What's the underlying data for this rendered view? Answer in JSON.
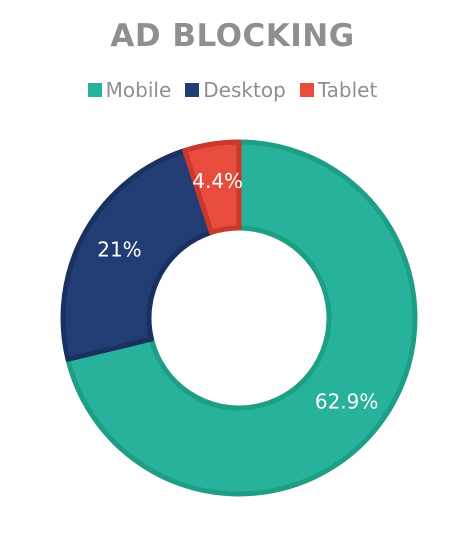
{
  "chart_data": {
    "type": "pie",
    "style": "donut",
    "title": "AD BLOCKING",
    "legend_position": "top",
    "categories": [
      "Mobile",
      "Desktop",
      "Tablet"
    ],
    "values": [
      62.9,
      21,
      4.4
    ],
    "data_labels": [
      "62.9%",
      "21%",
      "4.4%"
    ],
    "colors": [
      "#27b39b",
      "#223d73",
      "#e74c3c"
    ],
    "border_colors": [
      "#1f9e86",
      "#1a3060",
      "#c9392b"
    ]
  }
}
